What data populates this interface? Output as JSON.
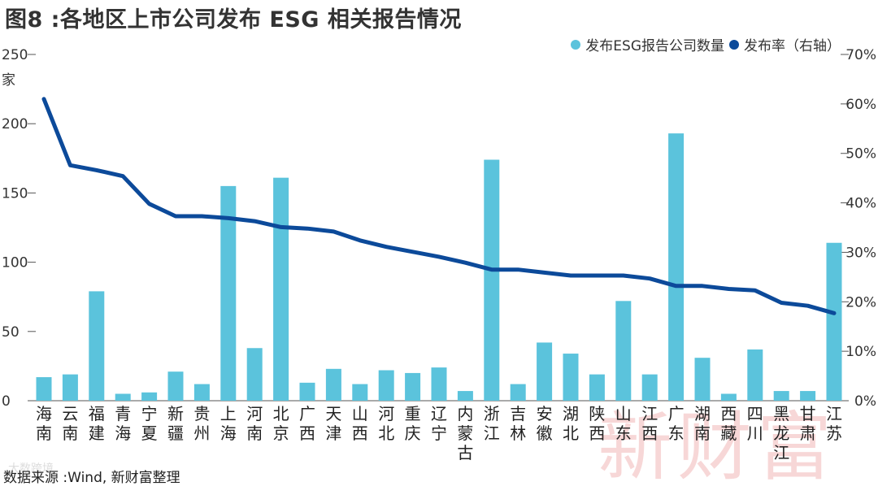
{
  "title": "图8 :各地区上市公司发布 ESG 相关报告情况",
  "unit_label": "家",
  "legend": {
    "bar_label": "发布ESG报告公司数量",
    "line_label": "发布率（右轴）"
  },
  "colors": {
    "bar": "#5bc3dc",
    "line": "#0c4a9a",
    "axis": "#555555"
  },
  "source": "数据来源 :Wind, 新财富整理",
  "watermark_text": "新财富",
  "logo_text": "大数跨境",
  "chart_data": {
    "type": "bar",
    "title": "图8 :各地区上市公司发布 ESG 相关报告情况",
    "xlabel": "",
    "ylabel": "家",
    "ylim": [
      0,
      250
    ],
    "y2lim": [
      0,
      70
    ],
    "y_ticks": [
      "0",
      "50",
      "100",
      "150",
      "200",
      "250"
    ],
    "y2_ticks": [
      "0%",
      "10%",
      "20%",
      "30%",
      "40%",
      "50%",
      "60%",
      "70%"
    ],
    "categories": [
      [
        "海",
        "南"
      ],
      [
        "云",
        "南"
      ],
      [
        "福",
        "建"
      ],
      [
        "青",
        "海"
      ],
      [
        "宁",
        "夏"
      ],
      [
        "新",
        "疆"
      ],
      [
        "贵",
        "州"
      ],
      [
        "上",
        "海"
      ],
      [
        "河",
        "南"
      ],
      [
        "北",
        "京"
      ],
      [
        "广",
        "西"
      ],
      [
        "天",
        "津"
      ],
      [
        "山",
        "西"
      ],
      [
        "河",
        "北"
      ],
      [
        "重",
        "庆"
      ],
      [
        "辽",
        "宁"
      ],
      [
        "内",
        "蒙",
        "古"
      ],
      [
        "浙",
        "江"
      ],
      [
        "吉",
        "林"
      ],
      [
        "安",
        "徽"
      ],
      [
        "湖",
        "北"
      ],
      [
        "陕",
        "西"
      ],
      [
        "山",
        "东"
      ],
      [
        "江",
        "西"
      ],
      [
        "广",
        "东"
      ],
      [
        "湖",
        "南"
      ],
      [
        "西",
        "藏"
      ],
      [
        "四",
        "川"
      ],
      [
        "黑",
        "龙",
        "江"
      ],
      [
        "甘",
        "肃"
      ],
      [
        "江",
        "苏"
      ]
    ],
    "series": [
      {
        "name": "发布ESG报告公司数量",
        "type": "bar",
        "values": [
          17,
          19,
          79,
          5,
          6,
          21,
          12,
          155,
          38,
          161,
          13,
          23,
          12,
          22,
          20,
          24,
          7,
          174,
          12,
          42,
          34,
          19,
          72,
          19,
          193,
          31,
          5,
          37,
          7,
          7,
          114
        ]
      },
      {
        "name": "发布率（右轴）",
        "type": "line",
        "axis": "right",
        "values": [
          61.0,
          47.6,
          46.6,
          45.4,
          39.8,
          37.3,
          37.3,
          36.9,
          36.3,
          35.1,
          34.8,
          34.2,
          32.4,
          31.1,
          30.1,
          29.1,
          27.9,
          26.5,
          26.5,
          25.9,
          25.3,
          25.3,
          25.3,
          24.7,
          23.2,
          23.2,
          22.6,
          22.3,
          19.8,
          19.2,
          17.7
        ]
      }
    ]
  }
}
